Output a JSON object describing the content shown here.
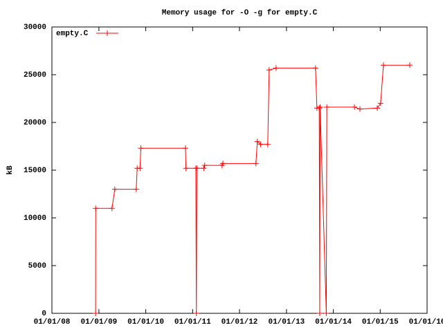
{
  "chart_data": {
    "type": "line",
    "title": "Memory usage for -O -g for empty.C",
    "ylabel": "kB",
    "x": [
      "2008-12-06",
      "2008-12-07",
      "2009-04-13",
      "2009-05-05",
      "2009-10-19",
      "2009-10-26",
      "2009-11-17",
      "2009-11-24",
      "2010-11-06",
      "2010-11-10",
      "2011-01-26",
      "2011-01-30",
      "2011-02-03",
      "2011-03-29",
      "2011-04-05",
      "2011-08-18",
      "2011-08-25",
      "2012-05-08",
      "2012-05-19",
      "2012-06-14",
      "2012-08-08",
      "2012-08-19",
      "2012-10-12",
      "2013-08-15",
      "2013-08-26",
      "2013-09-13",
      "2013-09-17",
      "2013-09-20",
      "2013-11-07",
      "2013-11-11",
      "2014-06-14",
      "2014-07-27",
      "2014-12-09",
      "2015-01-04",
      "2015-01-26",
      "2015-08-19"
    ],
    "series": [
      {
        "name": "empty.C",
        "color": "#ff0000",
        "values": [
          0,
          11000,
          11000,
          13000,
          13000,
          15200,
          15200,
          17300,
          17300,
          15200,
          15200,
          0,
          15200,
          15200,
          15500,
          15500,
          15700,
          15700,
          18000,
          17700,
          17700,
          25500,
          25700,
          25700,
          21500,
          21500,
          0,
          21600,
          0,
          21600,
          21600,
          21400,
          21500,
          22000,
          26000,
          26000
        ]
      }
    ],
    "xlim": [
      "2008-01-01",
      "2016-01-01"
    ],
    "xticks": [
      {
        "value": "2008-01-01",
        "label": "01/01/08"
      },
      {
        "value": "2009-01-01",
        "label": "01/01/09"
      },
      {
        "value": "2010-01-01",
        "label": "01/01/10"
      },
      {
        "value": "2011-01-01",
        "label": "01/01/11"
      },
      {
        "value": "2012-01-01",
        "label": "01/01/12"
      },
      {
        "value": "2013-01-01",
        "label": "01/01/13"
      },
      {
        "value": "2014-01-01",
        "label": "01/01/14"
      },
      {
        "value": "2015-01-01",
        "label": "01/01/15"
      },
      {
        "value": "2016-01-01",
        "label": "01/01/16"
      }
    ],
    "ylim": [
      0,
      30000
    ],
    "yticks": [
      0,
      5000,
      10000,
      15000,
      20000,
      25000,
      30000
    ],
    "legend": "top-left",
    "grid": false
  }
}
